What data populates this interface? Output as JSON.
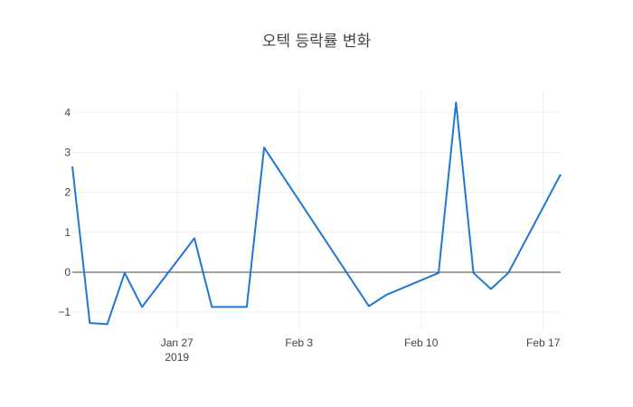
{
  "chart_data": {
    "type": "line",
    "title": "오텍 등락률 변화",
    "xlabel": "",
    "ylabel": "",
    "x_range": [
      "2019-01-21",
      "2019-02-18"
    ],
    "ylim": [
      -1.45,
      4.55
    ],
    "grid": true,
    "zero_line": true,
    "line_color": "#1f77d4",
    "x_ticks": [
      {
        "date": "2019-01-27",
        "label": "Jan 27",
        "sublabel": "2019"
      },
      {
        "date": "2019-02-03",
        "label": "Feb 3",
        "sublabel": ""
      },
      {
        "date": "2019-02-10",
        "label": "Feb 10",
        "sublabel": ""
      },
      {
        "date": "2019-02-17",
        "label": "Feb 17",
        "sublabel": ""
      }
    ],
    "y_ticks": [
      -1,
      0,
      1,
      2,
      3,
      4
    ],
    "y_tick_labels": [
      "−1",
      "0",
      "1",
      "2",
      "3",
      "4"
    ],
    "series": [
      {
        "x": [
          "2019-01-21",
          "2019-01-22",
          "2019-01-23",
          "2019-01-24",
          "2019-01-25",
          "2019-01-28",
          "2019-01-29",
          "2019-01-30",
          "2019-01-31",
          "2019-02-01",
          "2019-02-07",
          "2019-02-08",
          "2019-02-11",
          "2019-02-12",
          "2019-02-13",
          "2019-02-14",
          "2019-02-15",
          "2019-02-18"
        ],
        "values": [
          2.65,
          -1.27,
          -1.3,
          -0.02,
          -0.87,
          0.85,
          -0.87,
          -0.87,
          -0.87,
          3.12,
          -0.85,
          -0.57,
          -0.02,
          4.25,
          -0.02,
          -0.42,
          -0.02,
          2.45
        ]
      }
    ]
  }
}
